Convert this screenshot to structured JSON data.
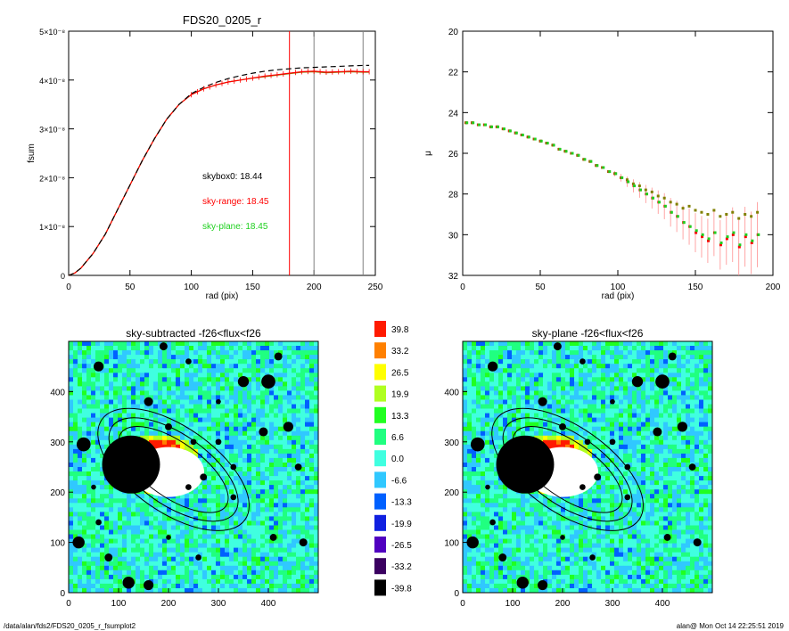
{
  "footer": {
    "path": "/data/alan/fds2/FDS20_0205_r_fsumplot2",
    "user_date": "alan@  Mon Oct 14 22:25:51 2019"
  },
  "colorbar": {
    "labels": [
      "39.8",
      "33.2",
      "26.5",
      "19.9",
      "13.3",
      "6.6",
      "0.0",
      "-6.6",
      "-13.3",
      "-19.9",
      "-26.5",
      "-33.2",
      "-39.8"
    ],
    "colors": [
      "#ff1a00",
      "#ff8000",
      "#ffff00",
      "#b0ff20",
      "#20ff20",
      "#20ff80",
      "#40ffe0",
      "#30c8ff",
      "#0060ff",
      "#1020e0",
      "#5000c0",
      "#3a0060",
      "#000000"
    ]
  },
  "chart_data": [
    {
      "type": "line",
      "title": "FDS20_0205_r",
      "xlabel": "rad (pix)",
      "ylabel": "fsum",
      "xlim": [
        0,
        250
      ],
      "ylim": [
        0,
        5e-08
      ],
      "x_ticks": [
        "0",
        "50",
        "100",
        "150",
        "200",
        "250"
      ],
      "y_ticks": [
        "0",
        "1×10⁻⁸",
        "2×10⁻⁸",
        "3×10⁻⁸",
        "4×10⁻⁸",
        "5×10⁻⁸"
      ],
      "x": [
        0,
        5,
        10,
        20,
        30,
        40,
        50,
        60,
        70,
        80,
        90,
        100,
        110,
        120,
        130,
        140,
        150,
        160,
        170,
        180,
        190,
        200,
        210,
        220,
        230,
        240,
        245
      ],
      "series": [
        {
          "color": "#808000",
          "values": [
            0,
            5e-10,
            1.5e-09,
            4.5e-09,
            8.5e-09,
            1.35e-08,
            1.85e-08,
            2.35e-08,
            2.8e-08,
            3.2e-08,
            3.5e-08,
            3.7e-08,
            3.82e-08,
            3.9e-08,
            3.96e-08,
            4e-08,
            4.04e-08,
            4.07e-08,
            4.1e-08,
            4.13e-08,
            4.16e-08,
            4.17e-08,
            4.15e-08,
            4.16e-08,
            4.17e-08,
            4.16e-08,
            4.16e-08
          ]
        },
        {
          "color": "#ff0000",
          "values": [
            0,
            5e-10,
            1.5e-09,
            4.5e-09,
            8.5e-09,
            1.35e-08,
            1.85e-08,
            2.35e-08,
            2.8e-08,
            3.2e-08,
            3.5e-08,
            3.7e-08,
            3.82e-08,
            3.9e-08,
            3.96e-08,
            4e-08,
            4.04e-08,
            4.08e-08,
            4.11e-08,
            4.14e-08,
            4.17e-08,
            4.18e-08,
            4.16e-08,
            4.17e-08,
            4.18e-08,
            4.17e-08,
            4.17e-08
          ]
        },
        {
          "color": "#000000",
          "dashed": true,
          "values": [
            0,
            5e-10,
            1.5e-09,
            4.5e-09,
            8.5e-09,
            1.35e-08,
            1.85e-08,
            2.35e-08,
            2.8e-08,
            3.2e-08,
            3.5e-08,
            3.72e-08,
            3.85e-08,
            3.95e-08,
            4.03e-08,
            4.09e-08,
            4.14e-08,
            4.18e-08,
            4.21e-08,
            4.23e-08,
            4.25e-08,
            4.26e-08,
            4.27e-08,
            4.28e-08,
            4.29e-08,
            4.3e-08,
            4.3e-08
          ]
        }
      ],
      "vlines": [
        {
          "x": 180,
          "color": "#ff0000"
        },
        {
          "x": 200,
          "color": "#808080"
        },
        {
          "x": 240,
          "color": "#808080"
        }
      ],
      "annotations": [
        {
          "text": "skybox0: 18.44",
          "color": "#000000"
        },
        {
          "text": "sky-range: 18.45",
          "color": "#ff0000"
        },
        {
          "text": "sky-plane: 18.45",
          "color": "#20d020"
        }
      ]
    },
    {
      "type": "scatter",
      "title": "",
      "xlabel": "rad (pix)",
      "ylabel": "μ",
      "xlim": [
        0,
        200
      ],
      "ylim": [
        32,
        20
      ],
      "x_ticks": [
        "0",
        "50",
        "100",
        "150",
        "200"
      ],
      "y_ticks": [
        "20",
        "22",
        "24",
        "26",
        "28",
        "30",
        "32"
      ],
      "x": [
        2,
        6,
        10,
        14,
        18,
        22,
        26,
        30,
        34,
        38,
        42,
        46,
        50,
        54,
        58,
        62,
        66,
        70,
        74,
        78,
        82,
        86,
        90,
        94,
        98,
        102,
        106,
        110,
        114,
        118,
        122,
        126,
        130,
        134,
        138,
        142,
        146,
        150,
        154,
        158,
        162,
        166,
        170,
        174,
        178,
        182,
        186,
        190
      ],
      "series": [
        {
          "color": "#808000",
          "values": [
            24.5,
            24.5,
            24.6,
            24.6,
            24.7,
            24.7,
            24.8,
            24.9,
            25.0,
            25.1,
            25.2,
            25.3,
            25.4,
            25.5,
            25.6,
            25.8,
            25.9,
            26.0,
            26.1,
            26.3,
            26.4,
            26.6,
            26.7,
            26.9,
            27.0,
            27.2,
            27.3,
            27.5,
            27.6,
            27.8,
            27.9,
            28.1,
            28.2,
            28.4,
            28.5,
            28.7,
            28.6,
            28.8,
            28.9,
            29.0,
            28.8,
            29.1,
            29.0,
            28.9,
            29.2,
            29.0,
            29.1,
            28.9
          ]
        },
        {
          "color": "#ff0000",
          "values": [
            24.5,
            24.5,
            24.6,
            24.6,
            24.7,
            24.7,
            24.8,
            24.9,
            25.0,
            25.1,
            25.2,
            25.3,
            25.4,
            25.5,
            25.6,
            25.8,
            25.9,
            26.0,
            26.1,
            26.3,
            26.4,
            26.6,
            26.7,
            26.9,
            27.0,
            27.2,
            27.4,
            27.6,
            27.8,
            28.0,
            28.2,
            28.4,
            28.6,
            28.9,
            29.1,
            29.4,
            29.6,
            29.9,
            30.1,
            30.3,
            29.9,
            30.5,
            30.2,
            30.0,
            30.6,
            30.1,
            30.4,
            30.0
          ]
        },
        {
          "color": "#20d020",
          "values": [
            24.5,
            24.5,
            24.6,
            24.6,
            24.7,
            24.7,
            24.8,
            24.9,
            25.0,
            25.1,
            25.2,
            25.3,
            25.4,
            25.5,
            25.6,
            25.8,
            25.9,
            26.0,
            26.1,
            26.3,
            26.4,
            26.6,
            26.7,
            26.9,
            27.0,
            27.2,
            27.4,
            27.6,
            27.8,
            28.0,
            28.2,
            28.4,
            28.6,
            28.9,
            29.1,
            29.4,
            29.6,
            29.8,
            30.0,
            30.2,
            29.9,
            30.4,
            30.1,
            29.9,
            30.5,
            30.0,
            30.3,
            30.0
          ]
        }
      ]
    },
    {
      "type": "heatmap",
      "title": "sky-subtracted -f26<flux<f26",
      "xlim": [
        0,
        500
      ],
      "ylim": [
        0,
        500
      ],
      "x_ticks": [
        "0",
        "100",
        "200",
        "300",
        "400"
      ],
      "y_ticks": [
        "0",
        "100",
        "200",
        "300",
        "400"
      ]
    },
    {
      "type": "heatmap",
      "title": "sky-plane -f26<flux<f26",
      "xlim": [
        0,
        500
      ],
      "ylim": [
        0,
        500
      ],
      "x_ticks": [
        "0",
        "100",
        "200",
        "300",
        "400"
      ],
      "y_ticks": [
        "0",
        "100",
        "200",
        "300",
        "400"
      ]
    }
  ]
}
